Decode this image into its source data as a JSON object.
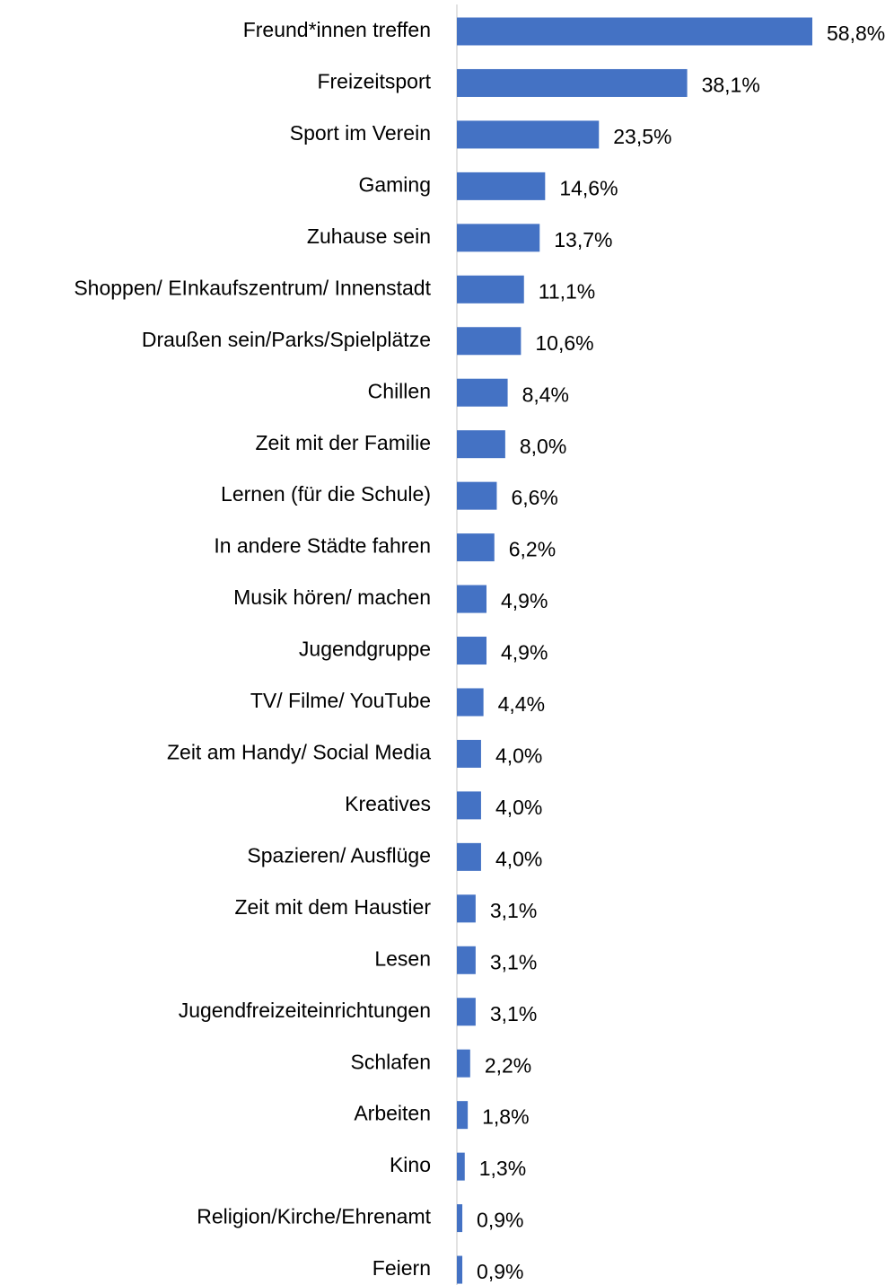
{
  "chart_data": {
    "type": "bar",
    "orientation": "horizontal",
    "color": "#4472c4",
    "categories": [
      "Freund*innen treffen",
      "Freizeitsport",
      "Sport im Verein",
      "Gaming",
      "Zuhause sein",
      "Shoppen/ EInkaufszentrum/ Innenstadt",
      "Draußen sein/Parks/Spielplätze",
      "Chillen",
      "Zeit mit der Familie",
      "Lernen (für die Schule)",
      "In andere Städte fahren",
      "Musik hören/ machen",
      "Jugendgruppe",
      "TV/ Filme/ YouTube",
      "Zeit am Handy/ Social Media",
      "Kreatives",
      "Spazieren/ Ausflüge",
      "Zeit mit dem Haustier",
      "Lesen",
      "Jugendfreizeiteinrichtungen",
      "Schlafen",
      "Arbeiten",
      "Kino",
      "Religion/Kirche/Ehrenamt",
      "Feiern"
    ],
    "values": [
      58.8,
      38.1,
      23.5,
      14.6,
      13.7,
      11.1,
      10.6,
      8.4,
      8.0,
      6.6,
      6.2,
      4.9,
      4.9,
      4.4,
      4.0,
      4.0,
      4.0,
      3.1,
      3.1,
      3.1,
      2.2,
      1.8,
      1.3,
      0.9,
      0.9
    ],
    "value_labels": [
      "58,8%",
      "38,1%",
      "23,5%",
      "14,6%",
      "13,7%",
      "11,1%",
      "10,6%",
      "8,4%",
      "8,0%",
      "6,6%",
      "6,2%",
      "4,9%",
      "4,9%",
      "4,4%",
      "4,0%",
      "4,0%",
      "4,0%",
      "3,1%",
      "3,1%",
      "3,1%",
      "2,2%",
      "1,8%",
      "1,3%",
      "0,9%",
      "0,9%"
    ]
  }
}
